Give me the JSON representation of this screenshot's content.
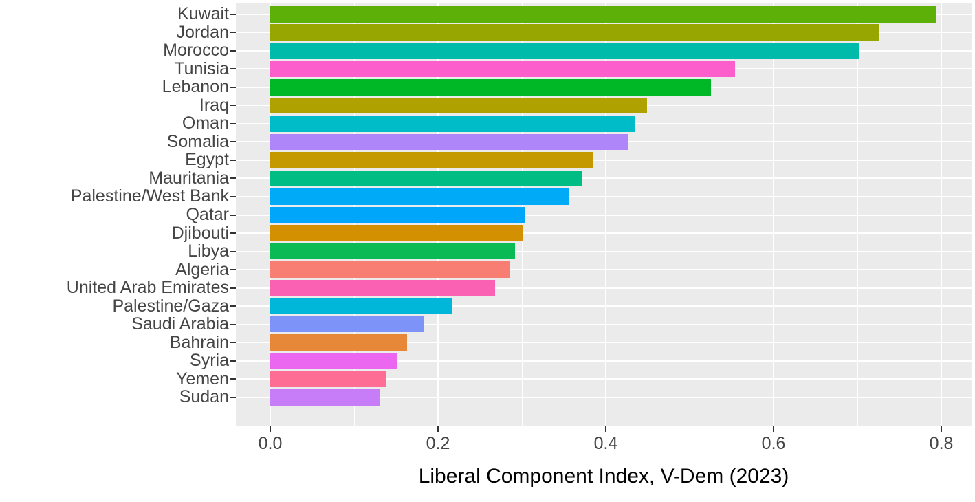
{
  "chart_data": {
    "type": "bar",
    "orientation": "horizontal",
    "title": "",
    "xlabel": "Liberal Component Index, V-Dem (2023)",
    "ylabel": "",
    "categories": [
      "Kuwait",
      "Jordan",
      "Morocco",
      "Tunisia",
      "Lebanon",
      "Iraq",
      "Oman",
      "Somalia",
      "Egypt",
      "Mauritania",
      "Palestine/West Bank",
      "Qatar",
      "Djibouti",
      "Libya",
      "Algeria",
      "United Arab Emirates",
      "Palestine/Gaza",
      "Saudi Arabia",
      "Bahrain",
      "Syria",
      "Yemen",
      "Sudan"
    ],
    "values": [
      0.793,
      0.725,
      0.702,
      0.554,
      0.525,
      0.449,
      0.434,
      0.426,
      0.384,
      0.371,
      0.356,
      0.304,
      0.301,
      0.292,
      0.285,
      0.268,
      0.216,
      0.183,
      0.163,
      0.151,
      0.138,
      0.131
    ],
    "bar_colors": [
      "#5CB008",
      "#97A600",
      "#00BBA9",
      "#FC5FCB",
      "#00B826",
      "#AFA100",
      "#00BCC8",
      "#AE86FA",
      "#C49900",
      "#00BE83",
      "#00AAF6",
      "#00A6FA",
      "#D39000",
      "#0ABB55",
      "#F87D72",
      "#FB61B2",
      "#00B7DA",
      "#7E93F8",
      "#E68837",
      "#EC67F0",
      "#FD6D94",
      "#C77DF8"
    ],
    "xticks": [
      0.0,
      0.2,
      0.4,
      0.6,
      0.8
    ],
    "xtick_labels": [
      "0.0",
      "0.2",
      "0.4",
      "0.6",
      "0.8"
    ],
    "minor_xticks": [
      0.1,
      0.3,
      0.5,
      0.7
    ],
    "xlim": [
      -0.041,
      0.836
    ],
    "grid": "on",
    "legend": "none",
    "panel_bg": "#EBEBEB",
    "grid_color": "#FFFFFF",
    "axis_text_color": "#454545",
    "tick_color": "#333333"
  }
}
